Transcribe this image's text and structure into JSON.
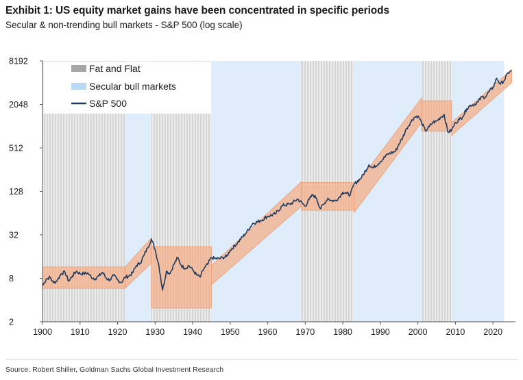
{
  "header": {
    "title": "Exhibit 1: US equity market gains have been concentrated in specific periods",
    "subtitle": "Secular & non-trending bull markets - S&P 500 (log scale)"
  },
  "footer": {
    "source": "Source: Robert Shiller, Goldman Sachs Global Investment Research"
  },
  "chart_data": {
    "type": "line",
    "log_scale_y": true,
    "xlim": [
      1900,
      2026
    ],
    "ylim": [
      2,
      8192
    ],
    "x_ticks": [
      1900,
      1910,
      1920,
      1930,
      1940,
      1950,
      1960,
      1970,
      1980,
      1990,
      2000,
      2010,
      2020
    ],
    "y_ticks": [
      2,
      8,
      32,
      128,
      512,
      2048,
      8192
    ],
    "legend": {
      "placement": "top-left",
      "items": [
        {
          "label": "Fat and Flat",
          "color": "#a6a6a6"
        },
        {
          "label": "Secular bull markets",
          "color": "#b9d9f2"
        },
        {
          "label": "S&P 500",
          "color": "#1f3a5f"
        }
      ]
    },
    "fat_and_flat_periods": [
      [
        1900,
        1922
      ],
      [
        1929,
        1945
      ],
      [
        1969,
        1983
      ],
      [
        2001,
        2009
      ]
    ],
    "secular_bull_periods": [
      [
        1922,
        1929
      ],
      [
        1945,
        1969
      ],
      [
        1983,
        2001
      ],
      [
        2009,
        2023
      ]
    ],
    "trend_channels": [
      {
        "type": "flat",
        "x": [
          1900,
          1922
        ],
        "low": 5.8,
        "high": 11.5
      },
      {
        "type": "bull",
        "x": [
          1922,
          1929
        ],
        "low_start": 5.8,
        "low_end": 13,
        "high_start": 11.5,
        "high_end": 29
      },
      {
        "type": "flat",
        "x": [
          1929,
          1945
        ],
        "low": 3.1,
        "high": 22
      },
      {
        "type": "bull",
        "x": [
          1945,
          1969
        ],
        "low_start": 6.5,
        "low_end": 80,
        "high_start": 12,
        "high_end": 175
      },
      {
        "type": "flat",
        "x": [
          1969,
          1983
        ],
        "low": 70,
        "high": 170
      },
      {
        "type": "bull",
        "x": [
          1983,
          2001
        ],
        "low_start": 65,
        "low_end": 1150,
        "high_start": 145,
        "high_end": 2520
      },
      {
        "type": "flat",
        "x": [
          2001,
          2009
        ],
        "low": 870,
        "high": 2300
      },
      {
        "type": "bull",
        "x": [
          2009,
          2025
        ],
        "low_start": 760,
        "low_end": 4100,
        "high_start": 1150,
        "high_end": 6200
      }
    ],
    "series": [
      {
        "name": "S&P 500",
        "x": [
          1900,
          1901,
          1902,
          1903,
          1904,
          1905,
          1906,
          1907,
          1908,
          1909,
          1910,
          1911,
          1912,
          1913,
          1914,
          1915,
          1916,
          1917,
          1918,
          1919,
          1920,
          1921,
          1922,
          1923,
          1924,
          1925,
          1926,
          1927,
          1928,
          1929,
          1930,
          1931,
          1932,
          1933,
          1934,
          1935,
          1936,
          1937,
          1938,
          1939,
          1940,
          1941,
          1942,
          1943,
          1944,
          1945,
          1946,
          1947,
          1948,
          1949,
          1950,
          1952,
          1954,
          1956,
          1958,
          1960,
          1962,
          1964,
          1966,
          1968,
          1970,
          1971,
          1972,
          1973,
          1974,
          1975,
          1976,
          1977,
          1978,
          1979,
          1980,
          1981,
          1982,
          1983,
          1985,
          1987,
          1988,
          1990,
          1992,
          1994,
          1995,
          1996,
          1997,
          1998,
          1999,
          2000,
          2001,
          2002,
          2003,
          2004,
          2005,
          2006,
          2007,
          2008,
          2009,
          2010,
          2011,
          2012,
          2013,
          2014,
          2015,
          2016,
          2017,
          2018,
          2019,
          2020,
          2021,
          2022,
          2023,
          2024,
          2025
        ],
        "values": [
          6.3,
          7.8,
          8.3,
          6.9,
          7.6,
          9.3,
          9.7,
          7.3,
          8.7,
          10.0,
          9.3,
          9.3,
          9.5,
          8.3,
          7.9,
          8.6,
          9.7,
          8.0,
          7.6,
          8.8,
          7.6,
          7.0,
          8.3,
          8.6,
          9.5,
          12.0,
          13.0,
          16.5,
          21.0,
          28.0,
          20.0,
          12.0,
          5.5,
          10.0,
          9.4,
          12.5,
          15.5,
          12.0,
          11.0,
          12.0,
          10.5,
          9.0,
          8.3,
          11.0,
          12.5,
          15.5,
          15.0,
          15.0,
          15.5,
          16.0,
          19.5,
          25.0,
          33.0,
          46.0,
          50.0,
          58.0,
          62.0,
          82.0,
          85.0,
          100.0,
          80.0,
          98.0,
          115.0,
          103.0,
          74.0,
          85.0,
          103.0,
          95.0,
          95.0,
          105.0,
          125.0,
          120.0,
          115.0,
          160.0,
          200.0,
          300.0,
          270.0,
          330.0,
          420.0,
          460.0,
          580.0,
          720.0,
          950.0,
          1150.0,
          1350.0,
          1420.0,
          1150.0,
          880.0,
          1000.0,
          1150.0,
          1200.0,
          1350.0,
          1480.0,
          850.0,
          900.0,
          1150.0,
          1260.0,
          1400.0,
          1780.0,
          2000.0,
          2050.0,
          2200.0,
          2600.0,
          2600.0,
          3100.0,
          3500.0,
          4700.0,
          3900.0,
          4400.0,
          5600.0,
          6000.0
        ]
      }
    ]
  }
}
